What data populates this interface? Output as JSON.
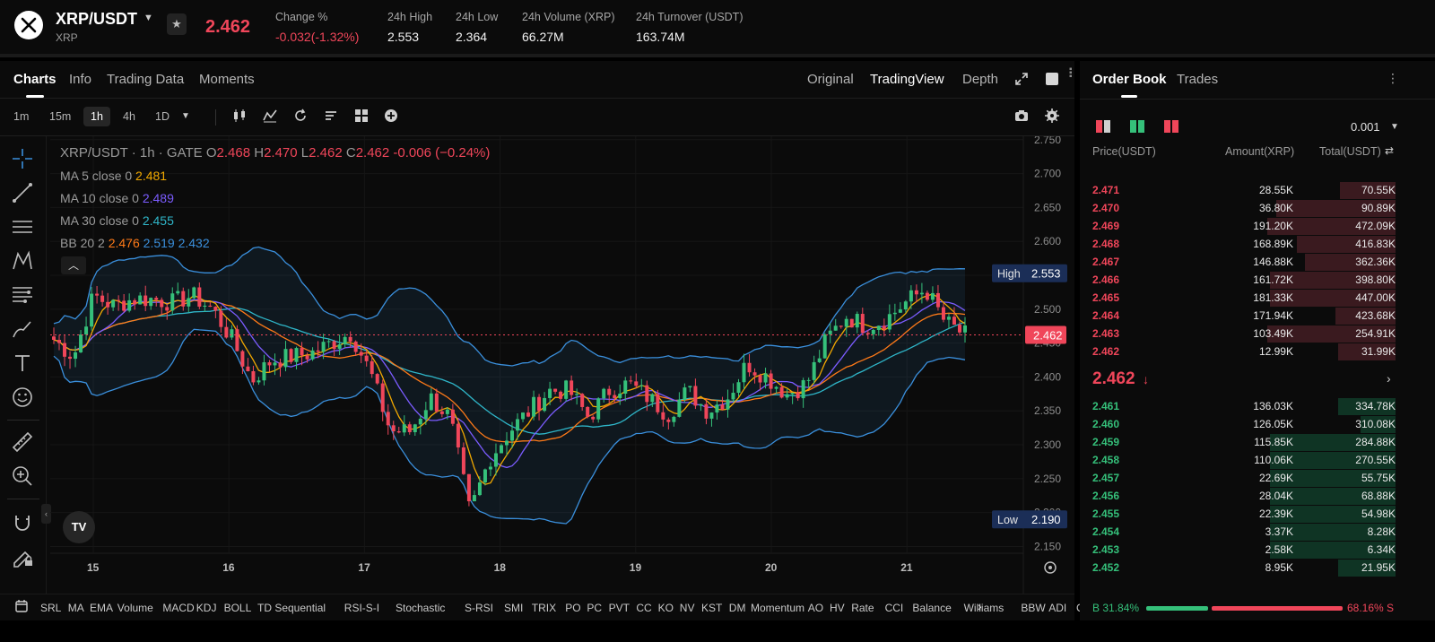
{
  "header": {
    "pair": "XRP/USDT",
    "base": "XRP",
    "last_price": "2.462",
    "stats": [
      {
        "label": "Change %",
        "value": "-0.032(-1.32%)",
        "red": true
      },
      {
        "label": "24h High",
        "value": "2.553",
        "red": false
      },
      {
        "label": "24h Low",
        "value": "2.364",
        "red": false
      },
      {
        "label": "24h Volume (XRP)",
        "value": "66.27M",
        "red": false
      },
      {
        "label": "24h Turnover (USDT)",
        "value": "163.74M",
        "red": false
      }
    ]
  },
  "chart_tabs": [
    "Charts",
    "Info",
    "Trading Data",
    "Moments"
  ],
  "chart_views": [
    "Original",
    "TradingView",
    "Depth"
  ],
  "timeframes": [
    "1m",
    "15m",
    "1h",
    "4h",
    "1D"
  ],
  "active_timeframe": "1h",
  "legend": {
    "title": "XRP/USDT · 1h · GATE",
    "o_label": "O",
    "o": "2.468",
    "h_label": "H",
    "h": "2.470",
    "l_label": "L",
    "l": "2.462",
    "c_label": "C",
    "c": "2.462",
    "change": "-0.006 (−0.24%)",
    "ma5_label": "MA 5 close 0",
    "ma5": "2.481",
    "ma10_label": "MA 10 close 0",
    "ma10": "2.489",
    "ma30_label": "MA 30 close 0",
    "ma30": "2.455",
    "bb_label": "BB 20 2",
    "bb_mid": "2.476",
    "bb_up": "2.519",
    "bb_low": "2.432"
  },
  "tv_logo": "TV",
  "colors": {
    "up": "#35c07a",
    "down": "#f0465a",
    "ma5": "#f2a900",
    "ma10": "#7b5cff",
    "ma30": "#2fb6c9",
    "bb": "#3a8fdc",
    "bb_mid": "#ff7a18",
    "highlight": "#1b2e57"
  },
  "chart_data": {
    "type": "line",
    "series": [
      {
        "name": "XRP/USDT",
        "values": [
          2.455,
          2.43,
          2.52,
          2.505,
          2.515,
          2.515,
          2.51,
          2.52,
          2.5,
          2.455,
          2.395,
          2.425,
          2.43,
          2.435,
          2.45,
          2.465,
          2.405,
          2.32,
          2.32,
          2.37,
          2.34,
          2.2,
          2.28,
          2.32,
          2.35,
          2.38,
          2.38,
          2.34,
          2.38,
          2.39,
          2.37,
          2.345,
          2.38,
          2.35,
          2.37,
          2.42,
          2.4,
          2.375,
          2.39,
          2.455,
          2.49,
          2.475,
          2.485,
          2.51,
          2.53,
          2.48,
          2.462
        ]
      }
    ],
    "x": [
      "15",
      "15",
      "15",
      "15",
      "15",
      "16",
      "16",
      "16",
      "16",
      "16",
      "16",
      "16",
      "17",
      "17",
      "17",
      "17",
      "17",
      "17",
      "18",
      "18",
      "18",
      "18",
      "18",
      "19",
      "19",
      "19",
      "19",
      "19",
      "19",
      "19",
      "19",
      "20",
      "20",
      "20",
      "20",
      "20",
      "20",
      "20",
      "20",
      "21",
      "21",
      "21",
      "21",
      "21",
      "21",
      "21",
      "21"
    ],
    "ylim": [
      2.14,
      2.755
    ],
    "y_ticks": [
      "2.750",
      "2.700",
      "2.650",
      "2.600",
      "2.550",
      "2.500",
      "2.450",
      "2.400",
      "2.350",
      "2.300",
      "2.250",
      "2.200",
      "2.150"
    ],
    "x_ticks": [
      "15",
      "16",
      "17",
      "18",
      "19",
      "20",
      "21"
    ],
    "high_label": "High",
    "high": "2.553",
    "low_label": "Low",
    "low": "2.190",
    "last": "2.462"
  },
  "indicators": [
    "SRL",
    "MA",
    "EMA",
    "Volume",
    "MACD",
    "KDJ",
    "BOLL",
    "TD Sequential",
    "RSI-S-I",
    "Stochastic",
    "S-RSI",
    "SMI",
    "TRIX",
    "PO",
    "PC",
    "PVT",
    "CC",
    "KO",
    "NV",
    "KST",
    "DM",
    "Momentum",
    "AO",
    "HV",
    "Rate",
    "CCI",
    "Balance",
    "Williams",
    "BBW",
    "ADI",
    "C"
  ],
  "orderbook": {
    "tabs": [
      "Order Book",
      "Trades"
    ],
    "precision": "0.001",
    "headers": {
      "price": "Price(USDT)",
      "amount": "Amount(XRP)",
      "total": "Total(USDT)"
    },
    "asks": [
      {
        "price": "2.471",
        "amount": "28.55K",
        "total": "70.55K",
        "depth": 0.27
      },
      {
        "price": "2.470",
        "amount": "36.80K",
        "total": "90.89K",
        "depth": 0.58
      },
      {
        "price": "2.469",
        "amount": "191.20K",
        "total": "472.09K",
        "depth": 0.62
      },
      {
        "price": "2.468",
        "amount": "168.89K",
        "total": "416.83K",
        "depth": 0.48
      },
      {
        "price": "2.467",
        "amount": "146.88K",
        "total": "362.36K",
        "depth": 0.44
      },
      {
        "price": "2.466",
        "amount": "161.72K",
        "total": "398.80K",
        "depth": 0.61
      },
      {
        "price": "2.465",
        "amount": "181.33K",
        "total": "447.00K",
        "depth": 0.61
      },
      {
        "price": "2.464",
        "amount": "171.94K",
        "total": "423.68K",
        "depth": 0.29
      },
      {
        "price": "2.463",
        "amount": "103.49K",
        "total": "254.91K",
        "depth": 0.62
      },
      {
        "price": "2.462",
        "amount": "12.99K",
        "total": "31.99K",
        "depth": 0.28
      }
    ],
    "mid_price": "2.462",
    "bids": [
      {
        "price": "2.461",
        "amount": "136.03K",
        "total": "334.78K",
        "depth": 0.28
      },
      {
        "price": "2.460",
        "amount": "126.05K",
        "total": "310.08K",
        "depth": 0.17
      },
      {
        "price": "2.459",
        "amount": "115.85K",
        "total": "284.88K",
        "depth": 0.61
      },
      {
        "price": "2.458",
        "amount": "110.06K",
        "total": "270.55K",
        "depth": 0.61
      },
      {
        "price": "2.457",
        "amount": "22.69K",
        "total": "55.75K",
        "depth": 0.61
      },
      {
        "price": "2.456",
        "amount": "28.04K",
        "total": "68.88K",
        "depth": 0.61
      },
      {
        "price": "2.455",
        "amount": "22.39K",
        "total": "54.98K",
        "depth": 0.61
      },
      {
        "price": "2.454",
        "amount": "3.37K",
        "total": "8.28K",
        "depth": 0.61
      },
      {
        "price": "2.453",
        "amount": "2.58K",
        "total": "6.34K",
        "depth": 0.61
      },
      {
        "price": "2.452",
        "amount": "8.95K",
        "total": "21.95K",
        "depth": 0.28
      }
    ],
    "buy_ratio": "B 31.84%",
    "sell_ratio": "68.16% S"
  }
}
